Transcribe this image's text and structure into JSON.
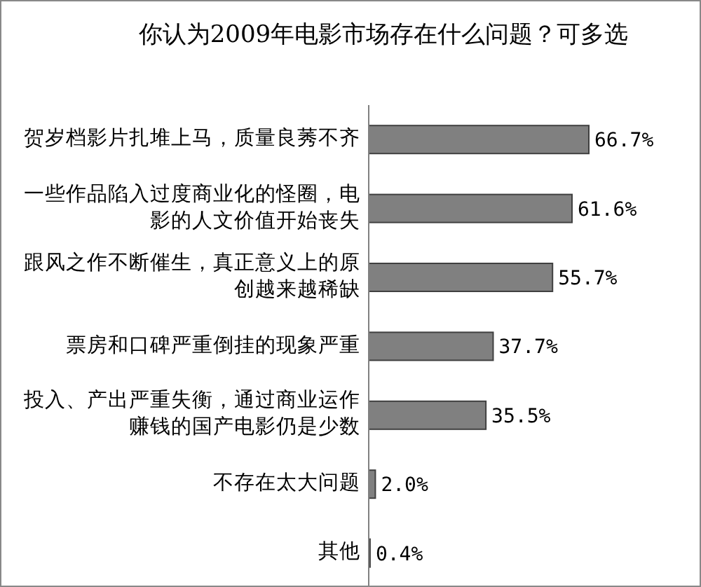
{
  "chart_data": {
    "type": "bar",
    "orientation": "horizontal",
    "title": "你认为2009年电影市场存在什么问题？可多选",
    "categories": [
      "贺岁档影片扎堆上马，质量良莠不齐",
      "一些作品陷入过度商业化的怪圈，电影的人文价值开始丧失",
      "跟风之作不断催生，真正意义上的原创越来越稀缺",
      "票房和口碑严重倒挂的现象严重",
      "投入、产出严重失衡，通过商业运作赚钱的国产电影仍是少数",
      "不存在太大问题",
      "其他"
    ],
    "values": [
      66.7,
      61.6,
      55.7,
      37.7,
      35.5,
      2.0,
      0.4
    ],
    "value_labels": [
      "66.7%",
      "61.6%",
      "55.7%",
      "37.7%",
      "35.5%",
      "2.0%",
      "0.4%"
    ],
    "color": "#808080"
  }
}
